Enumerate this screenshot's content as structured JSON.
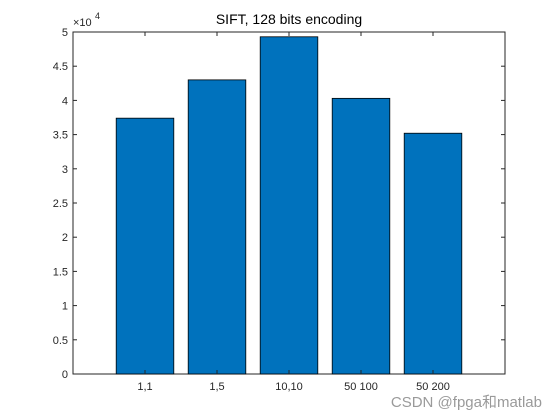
{
  "chart_data": {
    "type": "bar",
    "title": "SIFT, 128 bits encoding",
    "xlabel": "",
    "ylabel": "",
    "categories": [
      "1,1",
      "1,5",
      "10,10",
      "50 100",
      "50 200"
    ],
    "values": [
      37400,
      43000,
      49300,
      40300,
      35200
    ],
    "ylim": [
      0,
      50000
    ],
    "yticks": [
      0,
      0.5,
      1,
      1.5,
      2,
      2.5,
      3,
      3.5,
      4,
      4.5,
      5
    ],
    "ytick_labels": [
      "0",
      "0.5",
      "1",
      "1.5",
      "2",
      "2.5",
      "3",
      "3.5",
      "4",
      "4.5",
      "5"
    ],
    "y_exponent_base": "×10",
    "y_exponent_power": "4",
    "grid": false,
    "bar_color": "#0072BD",
    "bar_edge_color": "#000000"
  },
  "watermark": "CSDN @fpga和matlab"
}
